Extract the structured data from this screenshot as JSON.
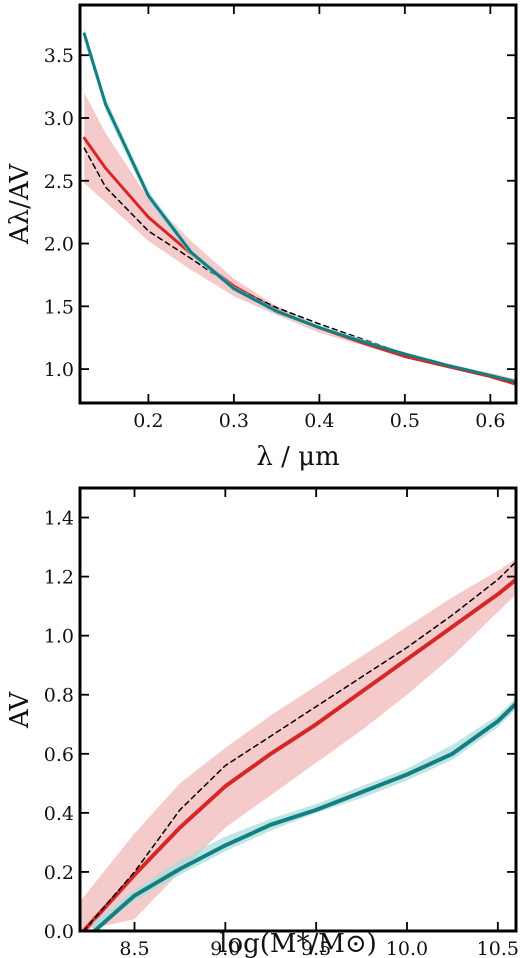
{
  "colors": {
    "red": "#d62728",
    "red_band": "#f2b8b8",
    "teal": "#137f80",
    "teal_band": "#a9dcdc",
    "dashed": "#000000"
  },
  "chart_data": [
    {
      "type": "line",
      "xlabel": "λ / μm",
      "ylabel": "Aλ/AV",
      "xlim": [
        0.12,
        0.63
      ],
      "ylim": [
        0.73,
        3.9
      ],
      "xticks": [
        "0.2",
        "0.3",
        "0.4",
        "0.5",
        "0.6"
      ],
      "yticks": [
        "1.0",
        "1.5",
        "2.0",
        "2.5",
        "3.0",
        "3.5"
      ],
      "grid": false,
      "series": [
        {
          "style": "band",
          "color_key": "red_band",
          "x": [
            0.125,
            0.15,
            0.2,
            0.25,
            0.3,
            0.35,
            0.4,
            0.45,
            0.5,
            0.55,
            0.6,
            0.63
          ],
          "y_low": [
            2.48,
            2.33,
            2.02,
            1.79,
            1.58,
            1.43,
            1.29,
            1.19,
            1.09,
            1.02,
            0.95,
            0.9
          ],
          "y_high": [
            3.2,
            2.88,
            2.36,
            2.02,
            1.72,
            1.5,
            1.35,
            1.23,
            1.12,
            1.04,
            0.97,
            0.92
          ]
        },
        {
          "style": "line",
          "color_key": "red",
          "x": [
            0.125,
            0.15,
            0.2,
            0.25,
            0.3,
            0.35,
            0.4,
            0.45,
            0.5,
            0.55,
            0.6,
            0.63
          ],
          "y": [
            2.84,
            2.6,
            2.21,
            1.92,
            1.66,
            1.47,
            1.33,
            1.21,
            1.1,
            1.02,
            0.94,
            0.88
          ]
        },
        {
          "style": "dashed",
          "color_key": "dashed",
          "x": [
            0.125,
            0.15,
            0.2,
            0.25,
            0.3,
            0.35,
            0.4,
            0.45,
            0.5,
            0.55,
            0.6,
            0.63
          ],
          "y": [
            2.76,
            2.45,
            2.1,
            1.88,
            1.65,
            1.49,
            1.36,
            1.24,
            1.12,
            1.03,
            0.95,
            0.89
          ]
        },
        {
          "style": "band",
          "color_key": "teal_band",
          "x": [
            0.125,
            0.15,
            0.2,
            0.25,
            0.3,
            0.35,
            0.4,
            0.45,
            0.5,
            0.55,
            0.6,
            0.63
          ],
          "y_low": [
            3.62,
            3.06,
            2.34,
            1.9,
            1.62,
            1.44,
            1.32,
            1.21,
            1.11,
            1.02,
            0.94,
            0.89
          ],
          "y_high": [
            3.72,
            3.16,
            2.42,
            1.96,
            1.66,
            1.48,
            1.35,
            1.24,
            1.13,
            1.04,
            0.96,
            0.91
          ]
        },
        {
          "style": "line",
          "color_key": "teal",
          "x": [
            0.125,
            0.15,
            0.2,
            0.25,
            0.3,
            0.35,
            0.4,
            0.45,
            0.5,
            0.55,
            0.6,
            0.63
          ],
          "y": [
            3.67,
            3.11,
            2.38,
            1.93,
            1.64,
            1.46,
            1.33,
            1.22,
            1.12,
            1.03,
            0.95,
            0.9
          ]
        }
      ]
    },
    {
      "type": "line",
      "xlabel": "log(M*/M⊙)",
      "ylabel": "AV",
      "xlim": [
        8.2,
        10.6
      ],
      "ylim": [
        0.0,
        1.5
      ],
      "xticks": [
        "8.5",
        "9.0",
        "9.5",
        "10.0",
        "10.5"
      ],
      "yticks": [
        "0.0",
        "0.2",
        "0.4",
        "0.6",
        "0.8",
        "1.0",
        "1.2",
        "1.4"
      ],
      "grid": false,
      "series": [
        {
          "style": "band",
          "color_key": "red_band",
          "x": [
            8.2,
            8.5,
            8.75,
            9.0,
            9.25,
            9.5,
            9.75,
            10.0,
            10.25,
            10.5,
            10.6
          ],
          "y_low": [
            0.0,
            0.04,
            0.2,
            0.35,
            0.46,
            0.57,
            0.68,
            0.8,
            0.93,
            1.08,
            1.14
          ],
          "y_high": [
            0.1,
            0.33,
            0.5,
            0.62,
            0.73,
            0.83,
            0.93,
            1.03,
            1.13,
            1.22,
            1.26
          ]
        },
        {
          "style": "line",
          "color_key": "red",
          "x": [
            8.22,
            8.5,
            8.75,
            9.0,
            9.25,
            9.5,
            9.75,
            10.0,
            10.25,
            10.5,
            10.6
          ],
          "y": [
            0.0,
            0.19,
            0.35,
            0.49,
            0.6,
            0.7,
            0.81,
            0.92,
            1.03,
            1.14,
            1.19
          ]
        },
        {
          "style": "dashed",
          "color_key": "dashed",
          "x": [
            8.22,
            8.5,
            8.75,
            9.0,
            9.25,
            9.5,
            9.75,
            10.0,
            10.25,
            10.5,
            10.6
          ],
          "y": [
            0.0,
            0.2,
            0.41,
            0.56,
            0.66,
            0.76,
            0.86,
            0.96,
            1.07,
            1.19,
            1.25
          ]
        },
        {
          "style": "band",
          "color_key": "teal_band",
          "x": [
            8.27,
            8.5,
            8.75,
            9.0,
            9.25,
            9.5,
            9.75,
            10.0,
            10.25,
            10.5,
            10.6
          ],
          "y_low": [
            0.0,
            0.1,
            0.19,
            0.27,
            0.34,
            0.4,
            0.45,
            0.51,
            0.58,
            0.69,
            0.75
          ],
          "y_high": [
            0.03,
            0.14,
            0.24,
            0.32,
            0.38,
            0.43,
            0.49,
            0.55,
            0.63,
            0.73,
            0.79
          ]
        },
        {
          "style": "line",
          "color_key": "teal",
          "x": [
            8.28,
            8.5,
            8.75,
            9.0,
            9.25,
            9.5,
            9.75,
            10.0,
            10.25,
            10.5,
            10.6
          ],
          "y": [
            0.0,
            0.12,
            0.21,
            0.29,
            0.36,
            0.41,
            0.47,
            0.53,
            0.6,
            0.71,
            0.77
          ]
        }
      ]
    }
  ]
}
